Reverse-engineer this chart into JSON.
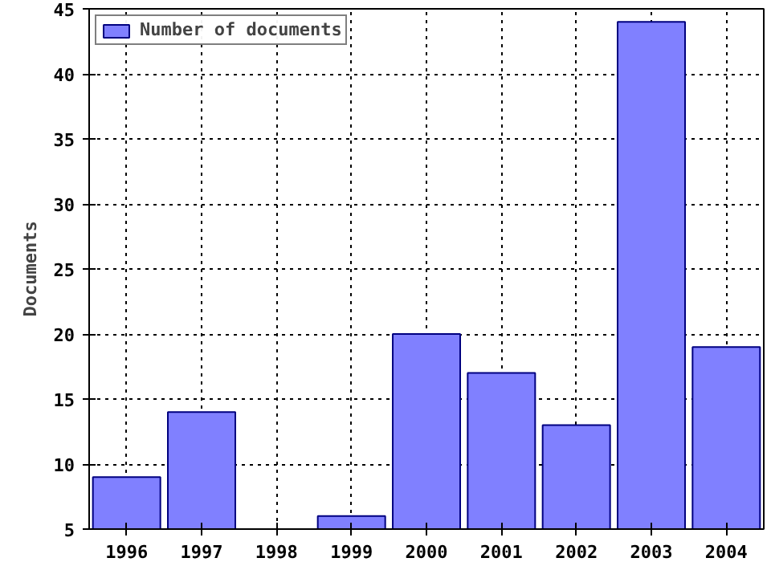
{
  "chart_data": {
    "type": "bar",
    "ylabel": "Documents",
    "x": [
      1996,
      1997,
      1998,
      1999,
      2000,
      2001,
      2002,
      2003,
      2004
    ],
    "series": [
      {
        "name": "Number of documents",
        "color": "#8080ff",
        "values": [
          9,
          14,
          null,
          6,
          20,
          17,
          13,
          44,
          19
        ]
      }
    ],
    "xlim": [
      1995.5,
      2004.5
    ],
    "xticks": [
      1996,
      1997,
      1998,
      1999,
      2000,
      2001,
      2002,
      2003,
      2004
    ],
    "ylim": [
      5,
      45
    ],
    "yticks": [
      5,
      10,
      15,
      20,
      25,
      30,
      35,
      40,
      45
    ],
    "grid": true,
    "legend": "top left"
  }
}
